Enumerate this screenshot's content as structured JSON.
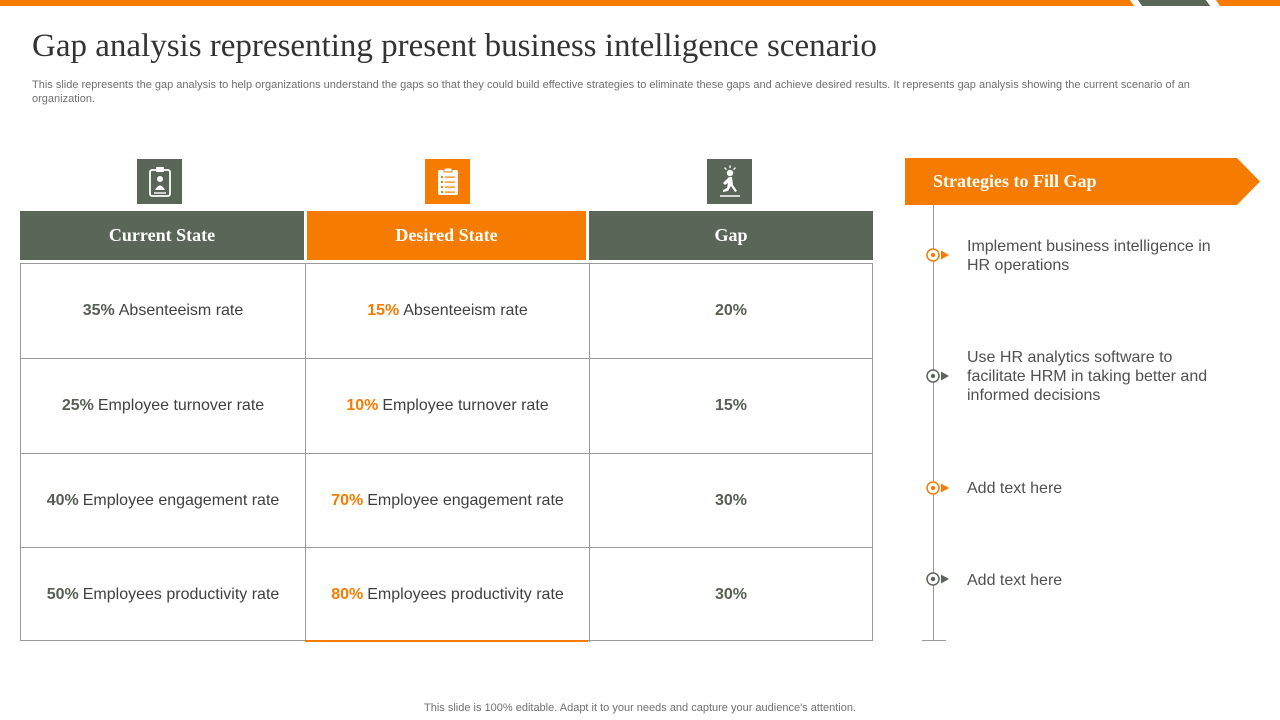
{
  "slide": {
    "title": "Gap analysis representing present business intelligence scenario",
    "subtitle": "This slide represents the gap analysis to help organizations understand the gaps so that they could build effective strategies to eliminate these gaps and achieve desired results. It represents gap analysis showing the current scenario of an organization.",
    "footer": "This slide is 100% editable. Adapt it to your needs and capture your audience's attention."
  },
  "table": {
    "headers": [
      "Current State",
      "Desired State",
      "Gap"
    ],
    "header_icons": [
      "clipboard-person-icon",
      "checklist-icon",
      "person-walking-icon"
    ],
    "rows": [
      {
        "current_value": "35%",
        "current_label": "Absenteeism rate",
        "desired_value": "15%",
        "desired_label": "Absenteeism rate",
        "gap": "20%"
      },
      {
        "current_value": "25%",
        "current_label": "Employee turnover  rate",
        "desired_value": "10%",
        "desired_label": "Employee turnover  rate",
        "gap": "15%"
      },
      {
        "current_value": "40%",
        "current_label": "Employee engagement rate",
        "desired_value": "70%",
        "desired_label": "Employee engagement rate",
        "gap": "30%"
      },
      {
        "current_value": "50%",
        "current_label": "Employees productivity  rate",
        "desired_value": "80%",
        "desired_label": "Employees productivity  rate",
        "gap": "30%"
      }
    ]
  },
  "strategies": {
    "title": "Strategies to Fill Gap",
    "items": [
      {
        "text": "Implement  business intelligence in HR operations",
        "marker_color": "#f57c00"
      },
      {
        "text": "Use HR analytics  software to facilitate HRM in taking better and informed decisions",
        "marker_color": "#5a6657"
      },
      {
        "text": "Add text here",
        "marker_color": "#f57c00"
      },
      {
        "text": "Add text here",
        "marker_color": "#5a6657"
      }
    ]
  },
  "colors": {
    "accent": "#f57c00",
    "dark": "#5a6657"
  }
}
